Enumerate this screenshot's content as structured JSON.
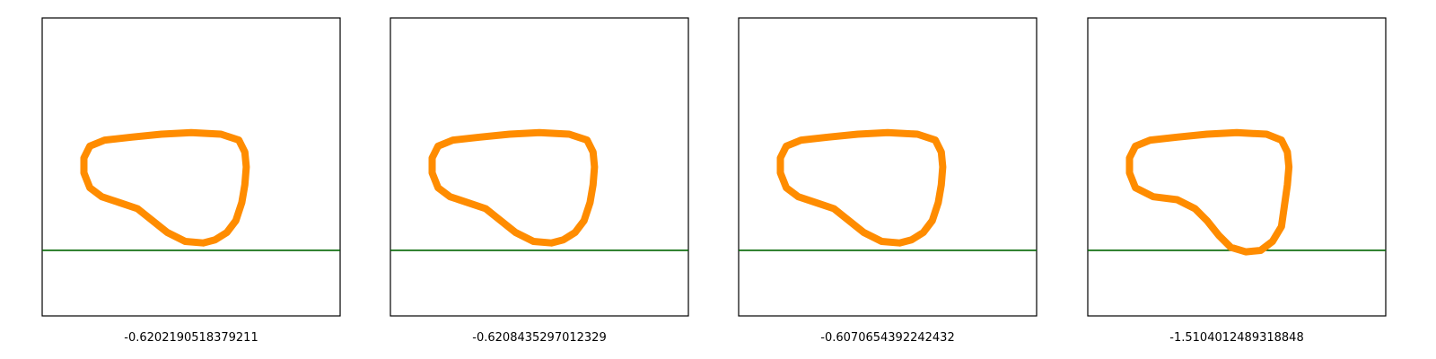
{
  "colors": {
    "shape": "#ff8c00",
    "ground": "#006400",
    "frame": "#000000"
  },
  "chart_data": {
    "type": "scatter",
    "xlim": [
      0,
      1
    ],
    "ylim": [
      0,
      1
    ],
    "grid": false,
    "panels": [
      {
        "caption": "-0.6202190518379211",
        "ground_y": 0.22,
        "shape": [
          [
            0.54,
            0.245
          ],
          [
            0.48,
            0.25
          ],
          [
            0.42,
            0.28
          ],
          [
            0.37,
            0.32
          ],
          [
            0.32,
            0.36
          ],
          [
            0.26,
            0.38
          ],
          [
            0.2,
            0.4
          ],
          [
            0.16,
            0.43
          ],
          [
            0.14,
            0.48
          ],
          [
            0.14,
            0.53
          ],
          [
            0.16,
            0.57
          ],
          [
            0.21,
            0.59
          ],
          [
            0.3,
            0.6
          ],
          [
            0.4,
            0.61
          ],
          [
            0.5,
            0.615
          ],
          [
            0.6,
            0.61
          ],
          [
            0.66,
            0.59
          ],
          [
            0.68,
            0.55
          ],
          [
            0.685,
            0.5
          ],
          [
            0.68,
            0.44
          ],
          [
            0.67,
            0.38
          ],
          [
            0.65,
            0.32
          ],
          [
            0.62,
            0.28
          ],
          [
            0.58,
            0.255
          ],
          [
            0.54,
            0.245
          ]
        ]
      },
      {
        "caption": "-0.6208435297012329",
        "ground_y": 0.22,
        "shape": [
          [
            0.54,
            0.245
          ],
          [
            0.48,
            0.25
          ],
          [
            0.42,
            0.28
          ],
          [
            0.37,
            0.32
          ],
          [
            0.32,
            0.36
          ],
          [
            0.26,
            0.38
          ],
          [
            0.2,
            0.4
          ],
          [
            0.16,
            0.43
          ],
          [
            0.14,
            0.48
          ],
          [
            0.14,
            0.53
          ],
          [
            0.16,
            0.57
          ],
          [
            0.21,
            0.59
          ],
          [
            0.3,
            0.6
          ],
          [
            0.4,
            0.61
          ],
          [
            0.5,
            0.615
          ],
          [
            0.6,
            0.61
          ],
          [
            0.66,
            0.59
          ],
          [
            0.68,
            0.55
          ],
          [
            0.685,
            0.5
          ],
          [
            0.68,
            0.44
          ],
          [
            0.67,
            0.38
          ],
          [
            0.65,
            0.32
          ],
          [
            0.62,
            0.28
          ],
          [
            0.58,
            0.255
          ],
          [
            0.54,
            0.245
          ]
        ]
      },
      {
        "caption": "-0.6070654392242432",
        "ground_y": 0.22,
        "shape": [
          [
            0.54,
            0.245
          ],
          [
            0.48,
            0.25
          ],
          [
            0.42,
            0.28
          ],
          [
            0.37,
            0.32
          ],
          [
            0.32,
            0.36
          ],
          [
            0.26,
            0.38
          ],
          [
            0.2,
            0.4
          ],
          [
            0.16,
            0.43
          ],
          [
            0.14,
            0.48
          ],
          [
            0.14,
            0.53
          ],
          [
            0.16,
            0.57
          ],
          [
            0.21,
            0.59
          ],
          [
            0.3,
            0.6
          ],
          [
            0.4,
            0.61
          ],
          [
            0.5,
            0.615
          ],
          [
            0.6,
            0.61
          ],
          [
            0.66,
            0.59
          ],
          [
            0.68,
            0.55
          ],
          [
            0.685,
            0.5
          ],
          [
            0.68,
            0.44
          ],
          [
            0.67,
            0.38
          ],
          [
            0.65,
            0.32
          ],
          [
            0.62,
            0.28
          ],
          [
            0.58,
            0.255
          ],
          [
            0.54,
            0.245
          ]
        ]
      },
      {
        "caption": "-1.5104012489318848",
        "ground_y": 0.22,
        "shape": [
          [
            0.53,
            0.215
          ],
          [
            0.48,
            0.23
          ],
          [
            0.44,
            0.27
          ],
          [
            0.4,
            0.32
          ],
          [
            0.36,
            0.36
          ],
          [
            0.3,
            0.39
          ],
          [
            0.22,
            0.4
          ],
          [
            0.16,
            0.43
          ],
          [
            0.14,
            0.48
          ],
          [
            0.14,
            0.53
          ],
          [
            0.16,
            0.57
          ],
          [
            0.21,
            0.59
          ],
          [
            0.3,
            0.6
          ],
          [
            0.4,
            0.61
          ],
          [
            0.5,
            0.615
          ],
          [
            0.6,
            0.61
          ],
          [
            0.65,
            0.59
          ],
          [
            0.67,
            0.55
          ],
          [
            0.675,
            0.5
          ],
          [
            0.67,
            0.44
          ],
          [
            0.66,
            0.37
          ],
          [
            0.65,
            0.3
          ],
          [
            0.62,
            0.25
          ],
          [
            0.58,
            0.22
          ],
          [
            0.53,
            0.215
          ]
        ]
      }
    ]
  }
}
